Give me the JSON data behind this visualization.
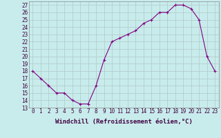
{
  "x": [
    0,
    1,
    2,
    3,
    4,
    5,
    6,
    7,
    8,
    9,
    10,
    11,
    12,
    13,
    14,
    15,
    16,
    17,
    18,
    19,
    20,
    21,
    22,
    23
  ],
  "y": [
    18,
    17,
    16,
    15,
    15,
    14,
    13.5,
    13.5,
    16,
    19.5,
    22,
    22.5,
    23,
    23.5,
    24.5,
    25,
    26,
    26,
    27,
    27,
    26.5,
    25,
    20,
    18
  ],
  "line_color": "#800080",
  "marker": "+",
  "bg_color": "#c8ecec",
  "grid_color": "#b0c8c8",
  "xlabel": "Windchill (Refroidissement éolien,°C)",
  "ylabel_ticks": [
    13,
    14,
    15,
    16,
    17,
    18,
    19,
    20,
    21,
    22,
    23,
    24,
    25,
    26,
    27
  ],
  "xlim": [
    -0.5,
    23.5
  ],
  "ylim": [
    13,
    27.5
  ],
  "xticks": [
    0,
    1,
    2,
    3,
    4,
    5,
    6,
    7,
    8,
    9,
    10,
    11,
    12,
    13,
    14,
    15,
    16,
    17,
    18,
    19,
    20,
    21,
    22,
    23
  ],
  "axis_fontsize": 6.5,
  "tick_fontsize": 5.5,
  "xlabel_fontsize": 6.5
}
